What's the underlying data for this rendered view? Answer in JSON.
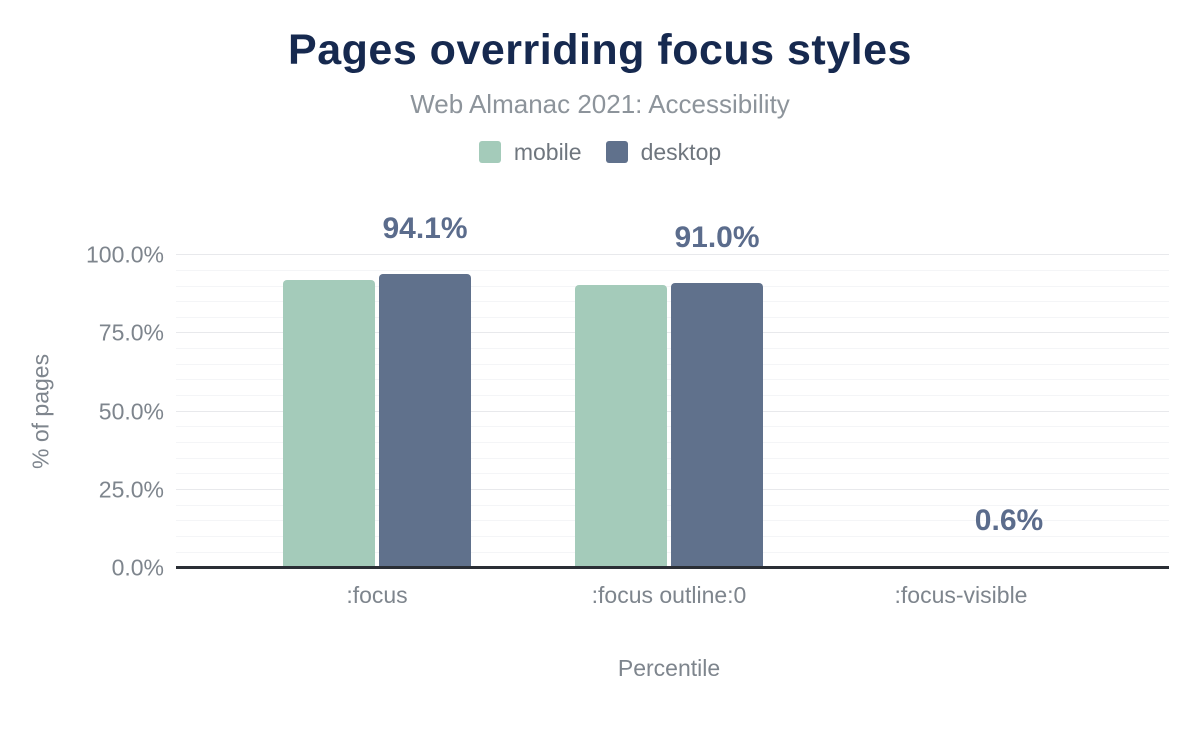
{
  "chart_data": {
    "type": "bar",
    "title": "Pages overriding focus styles",
    "subtitle": "Web Almanac 2021: Accessibility",
    "categories": [
      ":focus",
      ":focus outline:0",
      ":focus-visible"
    ],
    "series": [
      {
        "name": "mobile",
        "color": "#a4cbba",
        "values": [
          92.2,
          90.4,
          0.3
        ]
      },
      {
        "name": "desktop",
        "color": "#60718c",
        "values": [
          94.1,
          91.0,
          0.6
        ]
      }
    ],
    "data_labels": [
      "94.1%",
      "91.0%",
      "0.6%"
    ],
    "label_series": "desktop",
    "xlabel": "Percentile",
    "ylabel": "% of pages",
    "ylim": [
      0,
      100
    ],
    "yticks": [
      {
        "value": 0,
        "label": "0.0%"
      },
      {
        "value": 25,
        "label": "25.0%"
      },
      {
        "value": 50,
        "label": "50.0%"
      },
      {
        "value": 75,
        "label": "75.0%"
      },
      {
        "value": 100,
        "label": "100.0%"
      }
    ],
    "grid": {
      "major_every": 25,
      "minor_every": 5,
      "gridlines_on": true
    },
    "legend_position": "top"
  },
  "colors": {
    "title": "#16294f",
    "subtitle": "#8d949b",
    "legend_text": "#6f767e",
    "axis_text": "#7e858d",
    "value_label": "#5b6c8c",
    "baseline": "#2a2e35",
    "grid_major": "#e8e9ec",
    "grid_minor": "#f4f5f7",
    "background": "#ffffff"
  }
}
